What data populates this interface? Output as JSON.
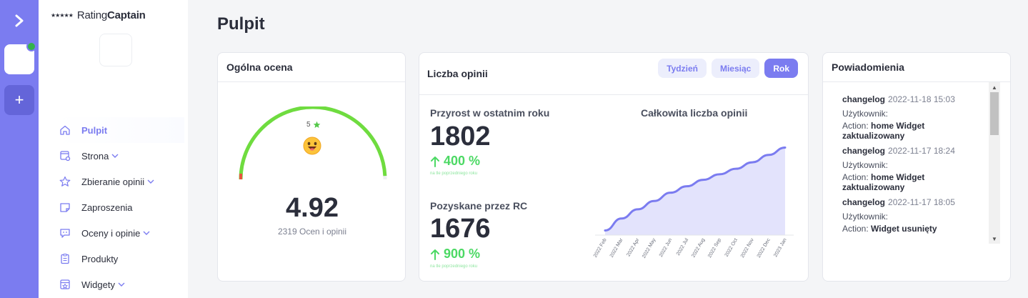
{
  "app": {
    "logo_text_light": "Rating",
    "logo_text_bold": "Captain",
    "logo_stars": "★★★★★",
    "accent": "#7b7cf0",
    "rail_add_icon": "+"
  },
  "sidebar": {
    "items": [
      {
        "label": "Pulpit",
        "icon": "home-icon",
        "active": true,
        "has_submenu": false
      },
      {
        "label": "Strona",
        "icon": "site-settings-icon",
        "has_submenu": true
      },
      {
        "label": "Zbieranie opinii",
        "icon": "star-icon",
        "has_submenu": true
      },
      {
        "label": "Zaproszenia",
        "icon": "invitation-icon",
        "has_submenu": false
      },
      {
        "label": "Oceny i opinie",
        "icon": "reviews-icon",
        "has_submenu": true
      },
      {
        "label": "Produkty",
        "icon": "clipboard-icon",
        "has_submenu": false
      },
      {
        "label": "Widgety",
        "icon": "widget-icon",
        "has_submenu": true
      }
    ]
  },
  "page": {
    "title": "Pulpit"
  },
  "rating_card": {
    "title": "Ogólna ocena",
    "max_stars_label": "5",
    "score": "4.92",
    "score_sub": "2319 Ocen i opinii",
    "score_value": 4.92,
    "score_max": 5
  },
  "count_card": {
    "title": "Liczba opinii",
    "periods": [
      {
        "label": "Tydzień",
        "active": false
      },
      {
        "label": "Miesiąc",
        "active": false
      },
      {
        "label": "Rok",
        "active": true
      }
    ],
    "growth_label": "Przyrost w ostatnim roku",
    "growth_value": "1802",
    "growth_pct": "400 %",
    "growth_note": "na tle poprzedniego roku",
    "rc_label": "Pozyskane przez RC",
    "rc_value": "1676",
    "rc_pct": "900 %",
    "rc_note": "na tle poprzedniego roku",
    "chart_title": "Całkowita liczba opinii"
  },
  "chart_data": {
    "type": "area",
    "title": "Całkowita liczba opinii",
    "categories": [
      "2022 Feb",
      "2022 Mar",
      "2022 Apr",
      "2022 May",
      "2022 Jun",
      "2022 Jul",
      "2022 Aug",
      "2022 Sep",
      "2022 Oct",
      "2022 Nov",
      "2022 Dec",
      "2023 Jan"
    ],
    "values": [
      0.05,
      0.18,
      0.28,
      0.37,
      0.46,
      0.53,
      0.6,
      0.66,
      0.72,
      0.79,
      0.87,
      0.95
    ],
    "fill": "#d9dafb",
    "stroke": "#7b7cf0",
    "grid": false
  },
  "notifications": {
    "title": "Powiadomienia",
    "user_label": "Użytkownik:",
    "action_label": "Action:",
    "items": [
      {
        "type": "changelog",
        "time": "2022-11-18 15:03",
        "action": "home Widget zaktualizowany"
      },
      {
        "type": "changelog",
        "time": "2022-11-17 18:24",
        "action": "home Widget zaktualizowany"
      },
      {
        "type": "changelog",
        "time": "2022-11-17 18:05",
        "action": "Widget usunięty"
      }
    ]
  }
}
